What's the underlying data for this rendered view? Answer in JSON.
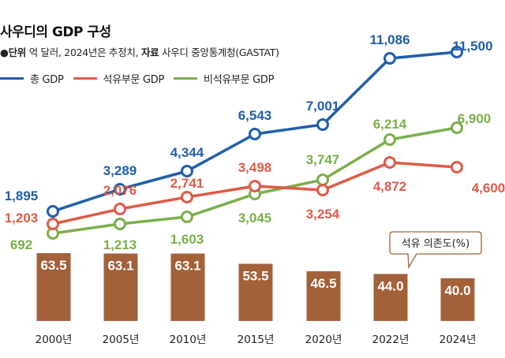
{
  "header": {
    "title": "사우디의 GDP 구성",
    "subtitle_bullet": "●",
    "subtitle_unit_label": "단위",
    "subtitle_unit_text": " 억 달러, 2024년은 추정치, ",
    "subtitle_source_label": "자료",
    "subtitle_source_text": " 사우디 중앙통계청(GASTAT)"
  },
  "colors": {
    "total": "#1f5faa",
    "oil": "#e05a47",
    "nonoil": "#7aaf4a",
    "bar": "#a3613a",
    "callout_border": "#a3613a"
  },
  "chart_data": [
    {
      "type": "line",
      "title": "사우디의 GDP 구성",
      "unit": "억 달러",
      "categories": [
        "2000년",
        "2005년",
        "2010년",
        "2015년",
        "2020년",
        "2022년",
        "2024년"
      ],
      "series": [
        {
          "name": "총 GDP",
          "key": "total",
          "values": [
            1895,
            3289,
            4344,
            6543,
            7001,
            11086,
            11500
          ],
          "labels": [
            "1,895",
            "3,289",
            "4,344",
            "6,543",
            "7,001",
            "11,086",
            "11,500"
          ]
        },
        {
          "name": "석유부문 GDP",
          "key": "oil",
          "values": [
            1203,
            2076,
            2741,
            3498,
            3254,
            4872,
            4600
          ],
          "labels": [
            "1,203",
            "2,076",
            "2,741",
            "3,498",
            "3,254",
            "4,872",
            "4,600"
          ]
        },
        {
          "name": "비석유부문 GDP",
          "key": "nonoil",
          "values": [
            692,
            1213,
            1603,
            3045,
            3747,
            6214,
            6900
          ],
          "labels": [
            "692",
            "1,213",
            "1,603",
            "3,045",
            "3,747",
            "6,214",
            "6,900"
          ]
        }
      ],
      "legend": "top-left",
      "note": "2024년은 추정치",
      "source": "사우디 중앙통계청(GASTAT)"
    },
    {
      "type": "bar",
      "title": "석유 의존도(%)",
      "categories": [
        "2000년",
        "2005년",
        "2010년",
        "2015년",
        "2020년",
        "2022년",
        "2024년"
      ],
      "values": [
        63.5,
        63.1,
        63.1,
        53.5,
        46.5,
        44.0,
        40.0
      ],
      "labels": [
        "63.5",
        "63.1",
        "63.1",
        "53.5",
        "46.5",
        "44.0",
        "40.0"
      ]
    }
  ],
  "callout": {
    "text": "석유 의존도(%)"
  }
}
